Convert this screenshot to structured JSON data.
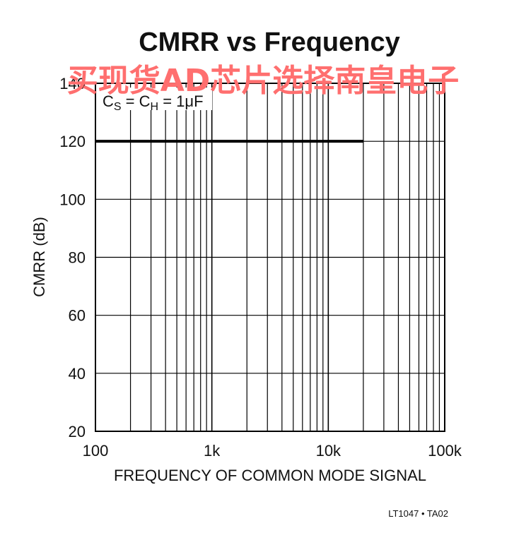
{
  "chart_data": {
    "type": "line",
    "title": "CMRR vs Frequency",
    "xlabel": "FREQUENCY OF COMMON MODE SIGNAL",
    "ylabel": "CMRR (dB)",
    "x_scale": "log",
    "xlim": [
      100,
      100000
    ],
    "ylim": [
      20,
      140
    ],
    "x_ticks": [
      100,
      1000,
      10000,
      100000
    ],
    "x_tick_labels": [
      "100",
      "1k",
      "10k",
      "100k"
    ],
    "y_ticks": [
      20,
      40,
      60,
      80,
      100,
      120,
      140
    ],
    "y_tick_labels": [
      "20",
      "40",
      "60",
      "80",
      "100",
      "120",
      "140"
    ],
    "grid": true,
    "series": [
      {
        "x": [
          100,
          20000
        ],
        "y": [
          120,
          120
        ],
        "color": "#000000"
      }
    ],
    "annotation": {
      "base": "C",
      "sub1": "S",
      "mid": " = C",
      "sub2": "H",
      "tail": " = 1μF"
    }
  },
  "figure_code": "LT1047 • TA02",
  "watermark": "买现货AD芯片选择南皇电子"
}
